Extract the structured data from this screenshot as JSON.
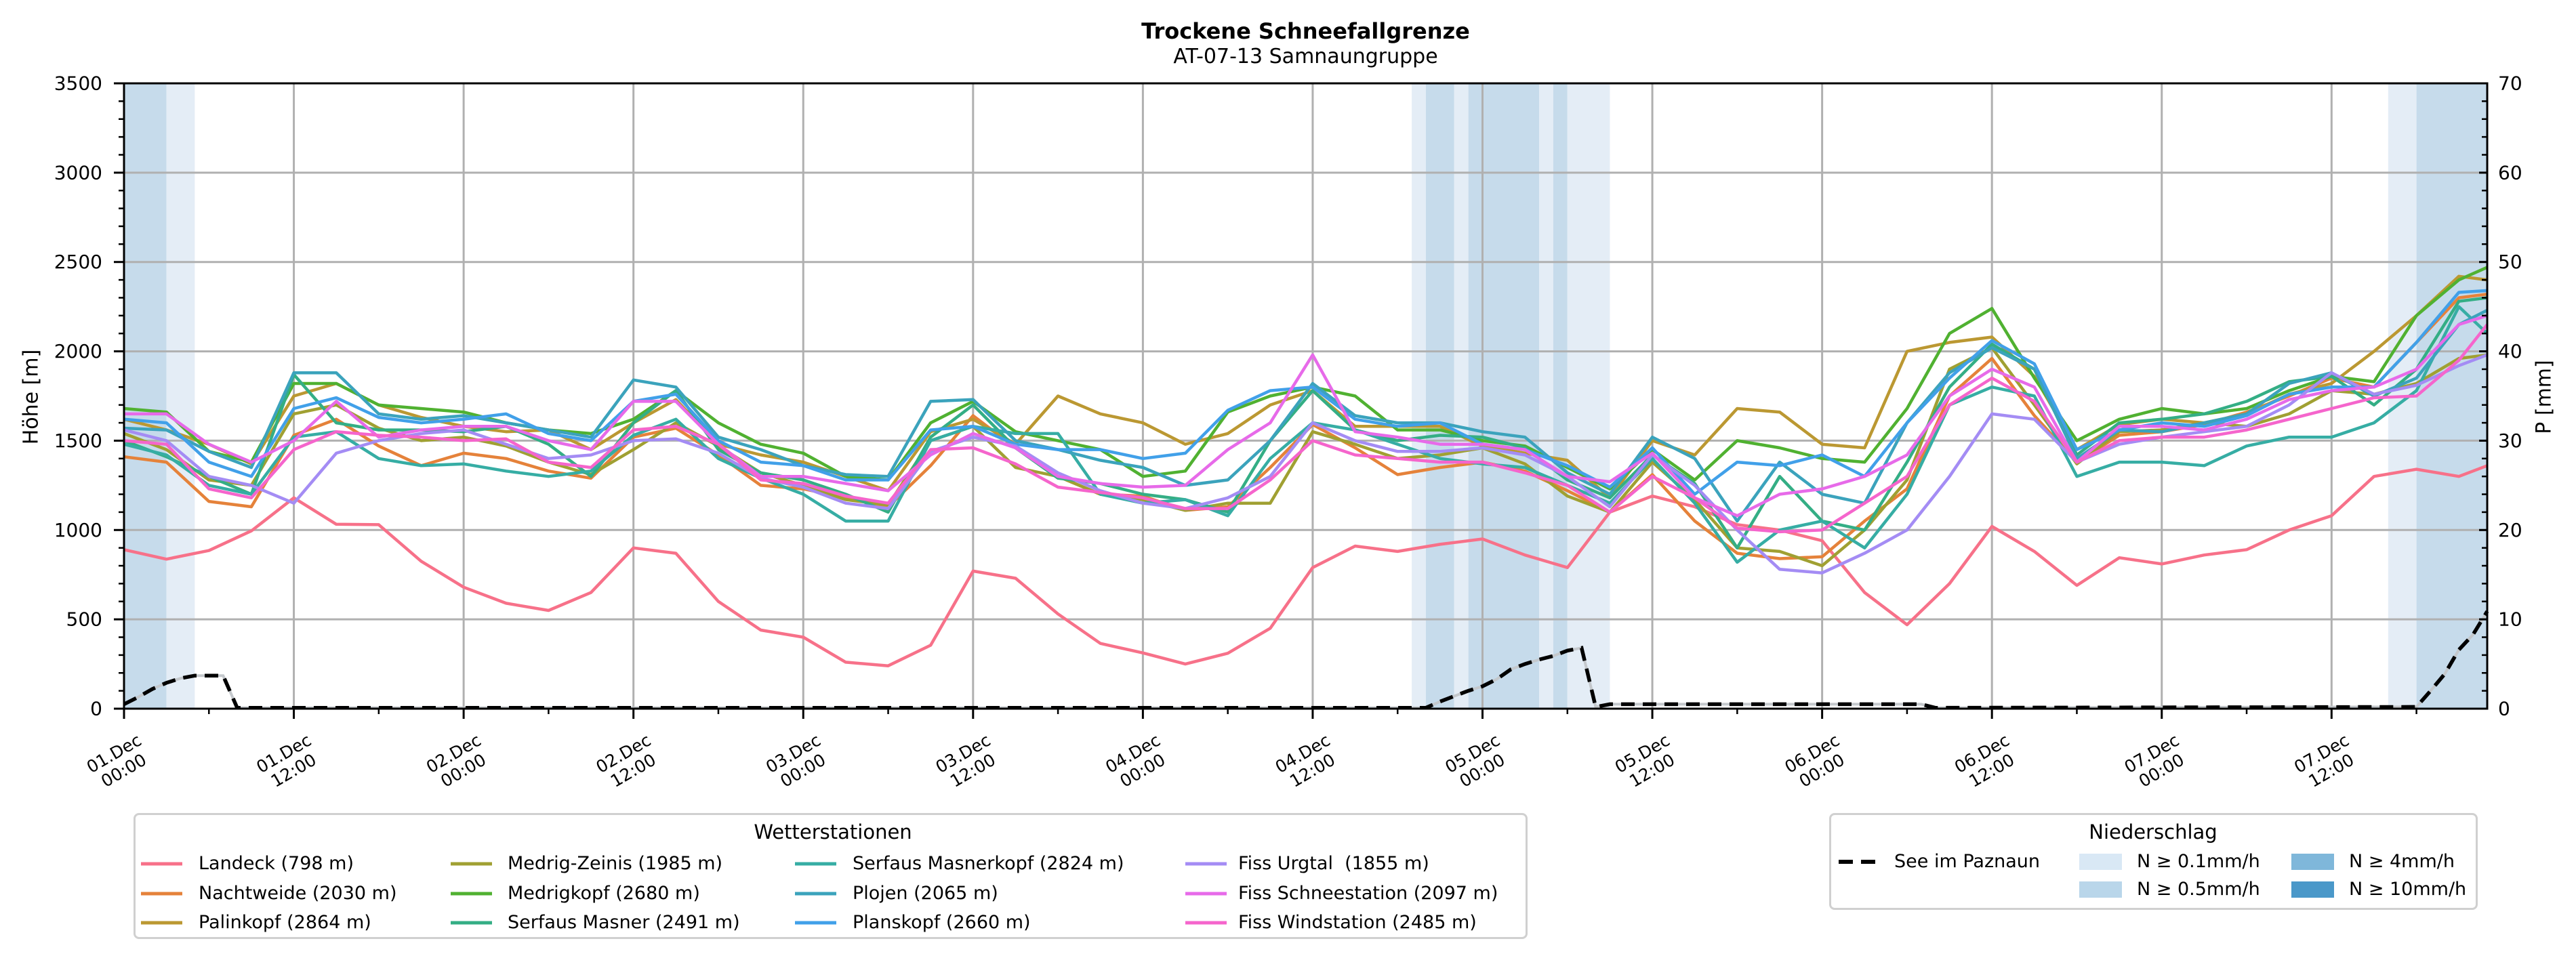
{
  "chart_data": {
    "type": "line",
    "title": "Trockene Schneefallgrenze",
    "subtitle": "AT-07-13 Samnaungruppe",
    "ylabel": "Höhe [m]",
    "ylabel_right": "P [mm]",
    "ylim": [
      0,
      3500
    ],
    "ylim_right": [
      0,
      70
    ],
    "xlim": [
      0,
      167
    ],
    "grid": true,
    "yticks": [
      "0",
      "500",
      "1000",
      "1500",
      "2000",
      "2500",
      "3000",
      "3500"
    ],
    "yticks_right": [
      "0",
      "10",
      "20",
      "30",
      "40",
      "50",
      "60",
      "70"
    ],
    "x_ticks": [
      {
        "h": 0,
        "date": "01.Dec",
        "time": "00:00"
      },
      {
        "h": 12,
        "date": "01.Dec",
        "time": "12:00"
      },
      {
        "h": 24,
        "date": "02.Dec",
        "time": "00:00"
      },
      {
        "h": 36,
        "date": "02.Dec",
        "time": "12:00"
      },
      {
        "h": 48,
        "date": "03.Dec",
        "time": "00:00"
      },
      {
        "h": 60,
        "date": "03.Dec",
        "time": "12:00"
      },
      {
        "h": 72,
        "date": "04.Dec",
        "time": "00:00"
      },
      {
        "h": 84,
        "date": "04.Dec",
        "time": "12:00"
      },
      {
        "h": 96,
        "date": "05.Dec",
        "time": "00:00"
      },
      {
        "h": 108,
        "date": "05.Dec",
        "time": "12:00"
      },
      {
        "h": 120,
        "date": "06.Dec",
        "time": "00:00"
      },
      {
        "h": 132,
        "date": "06.Dec",
        "time": "12:00"
      },
      {
        "h": 144,
        "date": "07.Dec",
        "time": "00:00"
      },
      {
        "h": 156,
        "date": "07.Dec",
        "time": "12:00"
      }
    ],
    "x": [
      0,
      3,
      6,
      9,
      12,
      15,
      18,
      21,
      24,
      27,
      30,
      33,
      36,
      39,
      42,
      45,
      48,
      51,
      54,
      57,
      60,
      63,
      66,
      69,
      72,
      75,
      78,
      81,
      84,
      87,
      90,
      93,
      96,
      99,
      102,
      105,
      108,
      111,
      114,
      117,
      120,
      123,
      126,
      129,
      132,
      135,
      138,
      141,
      144,
      147,
      150,
      153,
      156,
      159,
      162,
      165,
      167
    ],
    "series": [
      {
        "name": "Landeck (798 m)",
        "color": "#f77189",
        "values": [
          890,
          837,
          885,
          995,
          1180,
          1032,
          1030,
          825,
          680,
          590,
          550,
          650,
          900,
          870,
          600,
          440,
          400,
          260,
          240,
          355,
          770,
          730,
          530,
          365,
          312,
          250,
          310,
          450,
          790,
          910,
          880,
          920,
          950,
          860,
          790,
          1100,
          1190,
          1130,
          1030,
          1000,
          940,
          650,
          470,
          700,
          1020,
          880,
          690,
          845,
          810,
          860,
          890,
          1000,
          1080,
          1300,
          1340,
          1300,
          1360
        ]
      },
      {
        "name": "Nachtweide (2030 m)",
        "color": "#e5823a",
        "values": [
          1410,
          1380,
          1160,
          1130,
          1530,
          1620,
          1470,
          1360,
          1430,
          1400,
          1330,
          1290,
          1520,
          1570,
          1420,
          1250,
          1230,
          1180,
          1130,
          1360,
          1640,
          1460,
          1300,
          1200,
          1190,
          1110,
          1130,
          1350,
          1590,
          1460,
          1310,
          1350,
          1380,
          1330,
          1220,
          1100,
          1310,
          1050,
          870,
          840,
          850,
          1050,
          1230,
          1750,
          1960,
          1640,
          1380,
          1530,
          1550,
          1590,
          1660,
          1750,
          1850,
          1800,
          2050,
          2300,
          2320
        ]
      },
      {
        "name": "Palinkopf (2864 m)",
        "color": "#bb9832",
        "values": [
          1620,
          1560,
          1480,
          1370,
          1750,
          1820,
          1700,
          1630,
          1580,
          1550,
          1560,
          1450,
          1600,
          1730,
          1480,
          1420,
          1380,
          1300,
          1220,
          1550,
          1620,
          1480,
          1750,
          1650,
          1600,
          1480,
          1540,
          1700,
          1780,
          1580,
          1580,
          1580,
          1470,
          1430,
          1390,
          1180,
          1500,
          1420,
          1680,
          1660,
          1480,
          1460,
          2000,
          2050,
          2080,
          1860,
          1450,
          1590,
          1620,
          1600,
          1650,
          1760,
          1820,
          2000,
          2200,
          2420,
          2400
        ]
      },
      {
        "name": "Medrig-Zeinis (1985 m)",
        "color": "#a0a032",
        "values": [
          1540,
          1450,
          1280,
          1250,
          1650,
          1700,
          1570,
          1500,
          1520,
          1470,
          1380,
          1310,
          1450,
          1600,
          1470,
          1320,
          1250,
          1170,
          1140,
          1500,
          1580,
          1350,
          1300,
          1200,
          1170,
          1110,
          1150,
          1150,
          1550,
          1480,
          1400,
          1420,
          1460,
          1370,
          1190,
          1100,
          1380,
          1170,
          900,
          880,
          800,
          1000,
          1280,
          1900,
          2020,
          1700,
          1370,
          1550,
          1560,
          1600,
          1580,
          1650,
          1780,
          1760,
          1820,
          1960,
          1980
        ]
      },
      {
        "name": "Medrigkopf (2680 m)",
        "color": "#50b131",
        "values": [
          1680,
          1660,
          1440,
          1380,
          1820,
          1820,
          1700,
          1680,
          1660,
          1600,
          1560,
          1540,
          1620,
          1780,
          1600,
          1480,
          1430,
          1300,
          1280,
          1600,
          1720,
          1550,
          1500,
          1450,
          1300,
          1330,
          1660,
          1750,
          1800,
          1750,
          1560,
          1560,
          1500,
          1470,
          1350,
          1230,
          1450,
          1280,
          1500,
          1460,
          1400,
          1380,
          1680,
          2100,
          2240,
          1850,
          1500,
          1620,
          1680,
          1650,
          1680,
          1780,
          1860,
          1830,
          2200,
          2400,
          2470
        ]
      },
      {
        "name": "Serfaus Masner (2491 m)",
        "color": "#34ae85",
        "values": [
          1500,
          1410,
          1300,
          1200,
          1870,
          1600,
          1560,
          1560,
          1550,
          1580,
          1480,
          1300,
          1600,
          1780,
          1450,
          1320,
          1280,
          1200,
          1100,
          1520,
          1700,
          1460,
          1290,
          1260,
          1200,
          1170,
          1100,
          1500,
          1780,
          1560,
          1500,
          1530,
          1520,
          1460,
          1280,
          1180,
          1420,
          1260,
          900,
          1300,
          1050,
          1000,
          1380,
          1800,
          2040,
          1900,
          1420,
          1600,
          1620,
          1650,
          1720,
          1830,
          1860,
          1700,
          1900,
          2280,
          2300
        ]
      },
      {
        "name": "Serfaus Masnerkopf (2824 m)",
        "color": "#36ada4",
        "values": [
          1480,
          1420,
          1250,
          1200,
          1520,
          1550,
          1400,
          1360,
          1370,
          1330,
          1300,
          1330,
          1530,
          1620,
          1400,
          1290,
          1200,
          1050,
          1050,
          1500,
          1580,
          1540,
          1540,
          1200,
          1150,
          1170,
          1080,
          1400,
          1600,
          1560,
          1480,
          1400,
          1370,
          1350,
          1250,
          1150,
          1400,
          1150,
          820,
          1000,
          1050,
          900,
          1200,
          1700,
          1800,
          1750,
          1300,
          1380,
          1380,
          1360,
          1470,
          1520,
          1520,
          1600,
          1780,
          2250,
          2100
        ]
      },
      {
        "name": "Plojen (2065 m)",
        "color": "#3ba3bc",
        "values": [
          1570,
          1560,
          1440,
          1350,
          1880,
          1880,
          1650,
          1620,
          1640,
          1600,
          1560,
          1520,
          1840,
          1800,
          1520,
          1450,
          1360,
          1310,
          1300,
          1720,
          1730,
          1500,
          1450,
          1390,
          1350,
          1250,
          1280,
          1500,
          1820,
          1640,
          1600,
          1600,
          1550,
          1520,
          1320,
          1200,
          1520,
          1400,
          1050,
          1380,
          1200,
          1150,
          1600,
          1880,
          2020,
          1900,
          1400,
          1560,
          1550,
          1600,
          1650,
          1820,
          1880,
          1750,
          1850,
          2150,
          2230
        ]
      },
      {
        "name": "Planskopf (2660 m)",
        "color": "#41a0e9",
        "values": [
          1620,
          1600,
          1380,
          1300,
          1680,
          1740,
          1630,
          1600,
          1620,
          1650,
          1540,
          1500,
          1720,
          1760,
          1500,
          1380,
          1360,
          1280,
          1280,
          1560,
          1580,
          1480,
          1450,
          1450,
          1400,
          1430,
          1670,
          1780,
          1800,
          1620,
          1580,
          1600,
          1480,
          1450,
          1360,
          1240,
          1460,
          1200,
          1380,
          1360,
          1420,
          1300,
          1600,
          1850,
          2060,
          1930,
          1450,
          1560,
          1600,
          1580,
          1640,
          1760,
          1800,
          1800,
          2050,
          2330,
          2340
        ]
      },
      {
        "name": "Fiss Urgtal  (1855 m)",
        "color": "#a48cf4",
        "values": [
          1560,
          1500,
          1300,
          1250,
          1150,
          1430,
          1500,
          1540,
          1560,
          1480,
          1400,
          1420,
          1500,
          1510,
          1430,
          1290,
          1240,
          1150,
          1120,
          1440,
          1520,
          1470,
          1320,
          1220,
          1150,
          1120,
          1180,
          1300,
          1600,
          1500,
          1440,
          1440,
          1460,
          1420,
          1300,
          1130,
          1420,
          1250,
          1000,
          780,
          760,
          870,
          1000,
          1300,
          1650,
          1620,
          1380,
          1480,
          1520,
          1550,
          1580,
          1700,
          1880,
          1760,
          1810,
          1920,
          1980
        ]
      },
      {
        "name": "Fiss Schneestation (2097 m)",
        "color": "#e76ae9",
        "values": [
          1650,
          1650,
          1480,
          1380,
          1500,
          1720,
          1520,
          1560,
          1580,
          1580,
          1500,
          1450,
          1720,
          1720,
          1480,
          1300,
          1300,
          1260,
          1220,
          1420,
          1540,
          1460,
          1300,
          1260,
          1240,
          1250,
          1450,
          1600,
          1980,
          1550,
          1520,
          1480,
          1480,
          1450,
          1300,
          1270,
          1430,
          1180,
          1080,
          1200,
          1230,
          1300,
          1420,
          1750,
          1900,
          1800,
          1380,
          1580,
          1580,
          1560,
          1620,
          1730,
          1780,
          1800,
          1900,
          2150,
          2200
        ]
      },
      {
        "name": "Fiss Windstation (2485 m)",
        "color": "#f565cc",
        "values": [
          1500,
          1480,
          1230,
          1180,
          1450,
          1550,
          1530,
          1520,
          1500,
          1510,
          1380,
          1350,
          1560,
          1580,
          1480,
          1280,
          1260,
          1190,
          1150,
          1450,
          1460,
          1370,
          1240,
          1210,
          1180,
          1120,
          1120,
          1280,
          1500,
          1420,
          1400,
          1380,
          1380,
          1320,
          1250,
          1100,
          1300,
          1180,
          1010,
          990,
          1000,
          1150,
          1300,
          1700,
          1850,
          1720,
          1380,
          1500,
          1520,
          1520,
          1560,
          1620,
          1680,
          1740,
          1750,
          1950,
          2150
        ]
      }
    ],
    "lake_series": {
      "name": "See im Paznaun",
      "axis": "right",
      "color": "#000000",
      "points": [
        [
          0,
          0.5
        ],
        [
          1,
          1.3
        ],
        [
          2,
          2.2
        ],
        [
          3,
          2.9
        ],
        [
          4,
          3.4
        ],
        [
          5,
          3.7
        ],
        [
          7,
          3.7
        ],
        [
          8,
          0.1
        ],
        [
          92,
          0.1
        ],
        [
          93,
          0.8
        ],
        [
          94,
          1.4
        ],
        [
          95,
          2.0
        ],
        [
          96,
          2.5
        ],
        [
          97,
          3.3
        ],
        [
          98,
          4.4
        ],
        [
          99,
          5.0
        ],
        [
          100,
          5.5
        ],
        [
          101,
          5.9
        ],
        [
          102,
          6.5
        ],
        [
          103,
          6.8
        ],
        [
          104,
          0.2
        ],
        [
          105,
          0.5
        ],
        [
          127,
          0.5
        ],
        [
          128,
          0.1
        ],
        [
          162,
          0.2
        ],
        [
          163,
          2.0
        ],
        [
          164,
          3.9
        ],
        [
          165,
          6.6
        ],
        [
          166,
          8.3
        ],
        [
          167,
          10.9
        ]
      ]
    },
    "precip_bands": [
      {
        "start": 0,
        "end": 3,
        "level": 0.5
      },
      {
        "start": 3,
        "end": 5,
        "level": 0.1
      },
      {
        "start": 91,
        "end": 92,
        "level": 0.1
      },
      {
        "start": 92,
        "end": 94,
        "level": 0.5
      },
      {
        "start": 94,
        "end": 95,
        "level": 0.1
      },
      {
        "start": 95,
        "end": 100,
        "level": 0.5
      },
      {
        "start": 100,
        "end": 101,
        "level": 0.1
      },
      {
        "start": 101,
        "end": 102,
        "level": 0.5
      },
      {
        "start": 102,
        "end": 105,
        "level": 0.1
      },
      {
        "start": 160,
        "end": 162,
        "level": 0.1
      },
      {
        "start": 162,
        "end": 167,
        "level": 0.5
      }
    ],
    "band_colors": {
      "0.1": "#e4edf6",
      "0.5": "#c6dbeb",
      "4": "#98c3e0",
      "10": "#6aa8d2"
    }
  },
  "legends": {
    "stations": {
      "title": "Wetterstationen",
      "items": [
        {
          "label": "Landeck (798 m)",
          "color": "#f77189"
        },
        {
          "label": "Nachtweide (2030 m)",
          "color": "#e5823a"
        },
        {
          "label": "Palinkopf (2864 m)",
          "color": "#bb9832"
        },
        {
          "label": "Medrig-Zeinis (1985 m)",
          "color": "#a0a032"
        },
        {
          "label": "Medrigkopf (2680 m)",
          "color": "#50b131"
        },
        {
          "label": "Serfaus Masner (2491 m)",
          "color": "#34ae85"
        },
        {
          "label": "Serfaus Masnerkopf (2824 m)",
          "color": "#36ada4"
        },
        {
          "label": "Plojen (2065 m)",
          "color": "#3ba3bc"
        },
        {
          "label": "Planskopf (2660 m)",
          "color": "#41a0e9"
        },
        {
          "label": "Fiss Urgtal  (1855 m)",
          "color": "#a48cf4"
        },
        {
          "label": "Fiss Schneestation (2097 m)",
          "color": "#e76ae9"
        },
        {
          "label": "Fiss Windstation (2485 m)",
          "color": "#f565cc"
        }
      ]
    },
    "precip": {
      "title": "Niederschlag",
      "lake_label": "See im Paznaun",
      "items": [
        {
          "label": "N ≥ 0.1mm/h",
          "color": "#d9e8f5"
        },
        {
          "label": "N ≥ 0.5mm/h",
          "color": "#b9d6ea"
        },
        {
          "label": "N ≥ 4mm/h",
          "color": "#7fb7da"
        },
        {
          "label": "N ≥ 10mm/h",
          "color": "#4a98c9"
        }
      ]
    }
  }
}
